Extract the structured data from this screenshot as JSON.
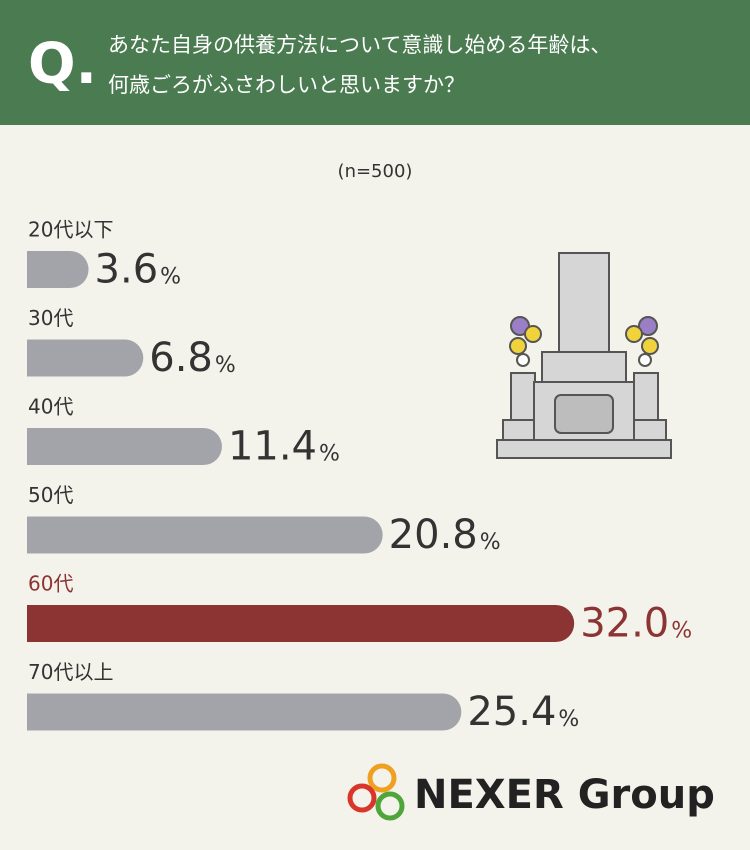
{
  "chart_data": {
    "type": "bar",
    "orientation": "horizontal",
    "question_mark": "Q.",
    "title": [
      "あなた自身の供養方法について意識し始める年齢は、",
      "何歳ごろがふさわしいと思いますか？"
    ],
    "subtitle": "(n=500)",
    "categories": [
      "20代以下",
      "30代",
      "40代",
      "50代",
      "60代",
      "70代以上"
    ],
    "values": [
      3.6,
      6.8,
      11.4,
      20.8,
      32.0,
      25.4
    ],
    "value_labels": [
      "3.6",
      "6.8",
      "11.4",
      "20.8",
      "32.0",
      "25.4"
    ],
    "unit": "%",
    "colors": [
      "#a3a4a9",
      "#a3a4a9",
      "#a3a4a9",
      "#a3a4a9",
      "#8c3434",
      "#a3a4a9"
    ],
    "logo": "NEXER Group"
  }
}
